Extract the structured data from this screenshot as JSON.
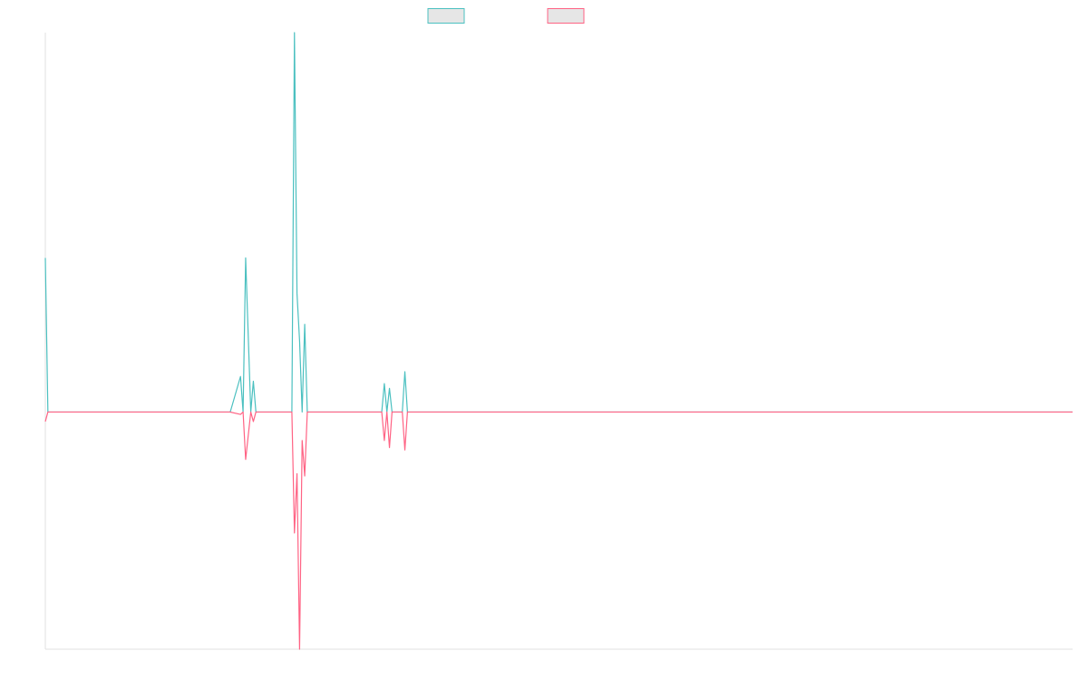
{
  "chart_data": {
    "type": "line",
    "legend_position": "top-center",
    "title": "",
    "xlabel": "",
    "ylabel": "",
    "grid": false,
    "colors": {
      "series_a": "#4bc0c0",
      "series_b": "#ff6384",
      "axis": "#e0e0e0",
      "legend_fill": "#e6e6e6"
    },
    "x": [
      0,
      1,
      35,
      36,
      70,
      71,
      72,
      76,
      77,
      78,
      80,
      81,
      82,
      83,
      96,
      97,
      98,
      99,
      100,
      101,
      102,
      103,
      105,
      106,
      131,
      132,
      133,
      134,
      135,
      136,
      139,
      140,
      141,
      142,
      250,
      251,
      400
    ],
    "xlim": [
      0,
      400
    ],
    "ylim": [
      -10,
      16
    ],
    "series": [
      {
        "name": "",
        "values": [
          6.5,
          0,
          0,
          0,
          0,
          0,
          0,
          1.5,
          0,
          6.5,
          0,
          1.3,
          0,
          0,
          0,
          16,
          5,
          3,
          0,
          3.7,
          0,
          0,
          0,
          0,
          0,
          1.2,
          0,
          1,
          0,
          0,
          0,
          1.7,
          0,
          0,
          0,
          0,
          0
        ]
      },
      {
        "name": "",
        "values": [
          -0.4,
          0,
          0,
          0,
          0,
          0,
          0,
          -0.1,
          0,
          -2,
          0,
          -0.4,
          0,
          0,
          0,
          -5.1,
          -2.6,
          -10,
          -1.2,
          -2.7,
          0,
          0,
          0,
          0,
          0,
          -1.2,
          0,
          -1.5,
          0,
          0,
          0,
          -1.6,
          0,
          0,
          0,
          0,
          0
        ]
      }
    ]
  }
}
